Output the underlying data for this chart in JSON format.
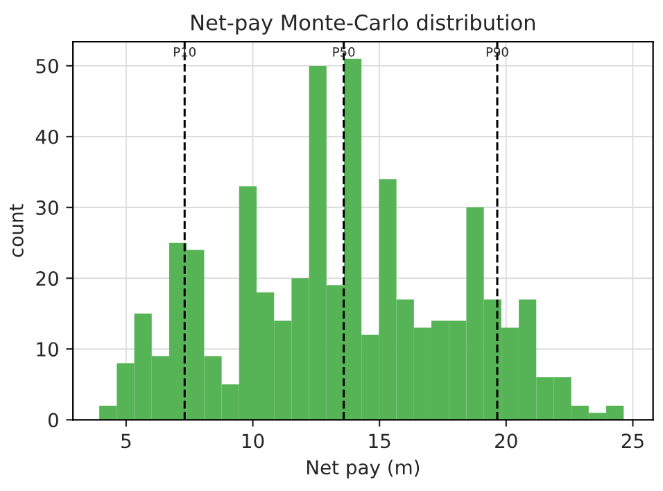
{
  "chart_data": {
    "type": "histogram",
    "title": "Net-pay Monte-Carlo distribution",
    "xlabel": "Net pay (m)",
    "ylabel": "count",
    "bins": [
      3.94,
      4.63,
      5.32,
      6.01,
      6.7,
      7.39,
      8.08,
      8.77,
      9.46,
      10.15,
      10.84,
      11.53,
      12.22,
      12.91,
      13.6,
      14.29,
      14.98,
      15.67,
      16.36,
      17.05,
      17.74,
      18.43,
      19.12,
      19.81,
      20.5,
      21.19,
      21.88,
      22.57,
      23.26,
      23.95,
      24.64
    ],
    "values": [
      2,
      8,
      15,
      9,
      25,
      24,
      9,
      5,
      33,
      18,
      14,
      20,
      50,
      19,
      51,
      12,
      34,
      17,
      13,
      14,
      14,
      30,
      17,
      13,
      17,
      6,
      6,
      2,
      1,
      2
    ],
    "color": "#56b356",
    "xlim": [
      2.9,
      25.8
    ],
    "ylim": [
      0,
      53.4
    ],
    "xticks": [
      5,
      10,
      15,
      20,
      25
    ],
    "yticks": [
      0,
      10,
      20,
      30,
      40,
      50
    ],
    "grid": true,
    "ref_lines": [
      {
        "axis": "x",
        "value": 7.31,
        "label": "P10",
        "color": "#000000",
        "line_style": "dashed"
      },
      {
        "axis": "x",
        "value": 13.59,
        "label": "P50",
        "color": "#000000",
        "line_style": "dashed"
      },
      {
        "axis": "x",
        "value": 19.65,
        "label": "P90",
        "color": "#000000",
        "line_style": "dashed"
      }
    ]
  }
}
